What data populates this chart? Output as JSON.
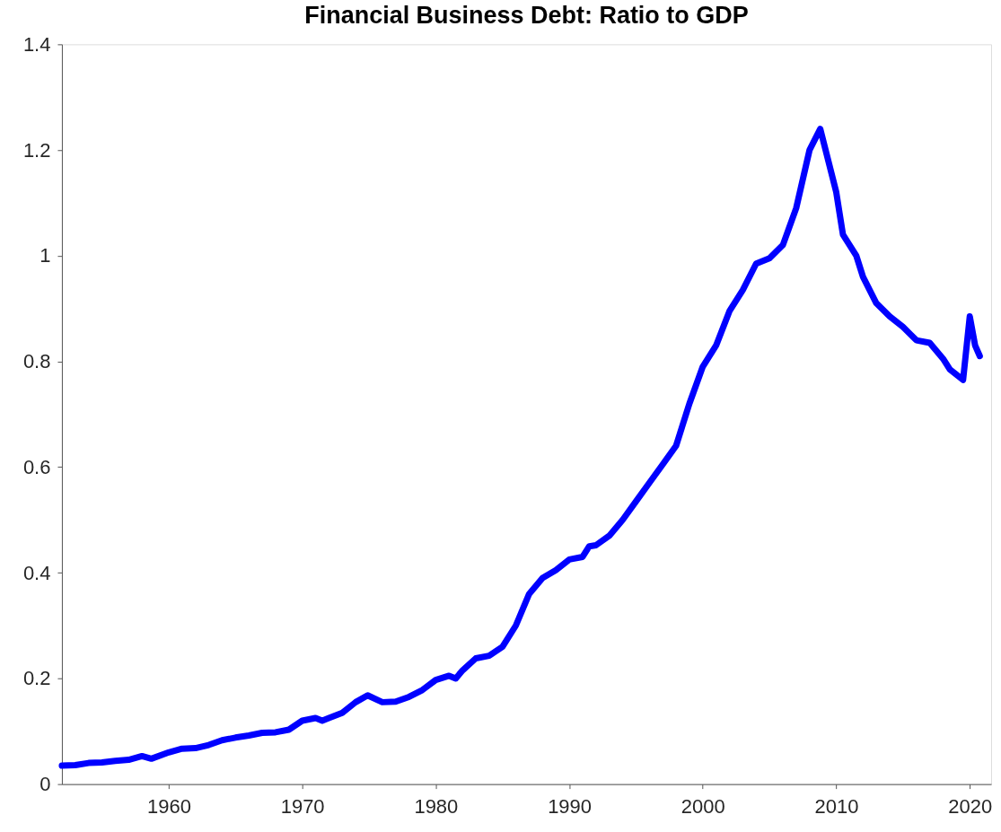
{
  "chart_data": {
    "type": "line",
    "title": "Financial Business Debt: Ratio to GDP",
    "x": [
      1952,
      1953,
      1954,
      1955,
      1956,
      1957,
      1958,
      1958.7,
      1960,
      1961,
      1962,
      1963,
      1964,
      1965,
      1966,
      1967,
      1968,
      1969,
      1970,
      1971,
      1971.5,
      1972,
      1973,
      1974,
      1974.9,
      1976,
      1977,
      1978,
      1979,
      1980,
      1981,
      1981.5,
      1982,
      1983,
      1984,
      1985,
      1986,
      1987,
      1988,
      1989,
      1990,
      1991,
      1991.5,
      1992,
      1993,
      1994,
      1995,
      1996,
      1997,
      1998,
      1999,
      2000,
      2001,
      2002,
      2003,
      2004,
      2005,
      2006,
      2007,
      2008,
      2008.8,
      2010,
      2010.5,
      2011.5,
      2012,
      2013,
      2014,
      2015,
      2016,
      2017,
      2018,
      2018.5,
      2019.5,
      2020,
      2020.4,
      2020.75
    ],
    "series": [
      {
        "color": "#0000ff",
        "values": [
          0.035,
          0.036,
          0.04,
          0.041,
          0.044,
          0.046,
          0.053,
          0.048,
          0.06,
          0.067,
          0.068,
          0.074,
          0.083,
          0.088,
          0.092,
          0.097,
          0.098,
          0.103,
          0.12,
          0.125,
          0.12,
          0.125,
          0.135,
          0.155,
          0.168,
          0.155,
          0.156,
          0.165,
          0.178,
          0.197,
          0.205,
          0.2,
          0.215,
          0.238,
          0.243,
          0.26,
          0.3,
          0.36,
          0.39,
          0.405,
          0.425,
          0.43,
          0.45,
          0.452,
          0.47,
          0.5,
          0.535,
          0.57,
          0.605,
          0.64,
          0.72,
          0.79,
          0.83,
          0.895,
          0.935,
          0.985,
          0.995,
          1.02,
          1.09,
          1.2,
          1.24,
          1.12,
          1.04,
          1.0,
          0.96,
          0.91,
          0.885,
          0.865,
          0.84,
          0.835,
          0.805,
          0.785,
          0.765,
          0.885,
          0.83,
          0.81
        ]
      }
    ],
    "xlim": [
      1952,
      2021.6
    ],
    "xticks": [
      1960,
      1970,
      1980,
      1990,
      2000,
      2010,
      2020
    ],
    "ylim": [
      0,
      1.4
    ],
    "yticks": [
      0,
      0.2,
      0.4,
      0.6,
      0.8,
      1,
      1.2,
      1.4
    ],
    "grid": false,
    "marker": "none",
    "line_style": "solid"
  }
}
